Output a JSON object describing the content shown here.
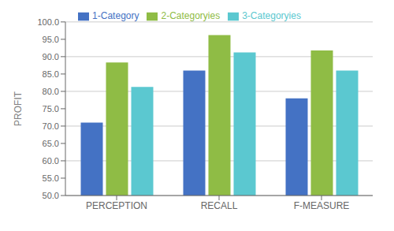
{
  "chart_data": {
    "type": "bar",
    "categories": [
      "PERCEPTION",
      "RECALL",
      "F-MEASURE"
    ],
    "series": [
      {
        "name": "1-Category",
        "color": "#4472C4",
        "values": [
          71.0,
          86.0,
          78.0
        ]
      },
      {
        "name": "2-Categoryies",
        "color": "#8FBC45",
        "values": [
          88.3,
          96.2,
          91.8
        ]
      },
      {
        "name": "3-Categoryies",
        "color": "#5BC8D0",
        "values": [
          81.3,
          91.2,
          86.0
        ]
      }
    ],
    "ylabel": "PROFIT",
    "ylim": [
      50.0,
      100.0
    ],
    "yticks": [
      {
        "value": 50.0,
        "label": "50.0"
      },
      {
        "value": 55.0,
        "label": "55.0"
      },
      {
        "value": 60.0,
        "label": "60.0"
      },
      {
        "value": 65.0,
        "label": "65.0"
      },
      {
        "value": 70.0,
        "label": "70.0"
      },
      {
        "value": 75.0,
        "label": "75.0"
      },
      {
        "value": 80.0,
        "label": "80.0"
      },
      {
        "value": 85.0,
        "label": "85.0"
      },
      {
        "value": 90.0,
        "label": "90.0"
      },
      {
        "value": 95.0,
        "label": "95.0"
      },
      {
        "value": 100.0,
        "label": "100.0"
      }
    ],
    "grid": true,
    "legend": "top"
  }
}
